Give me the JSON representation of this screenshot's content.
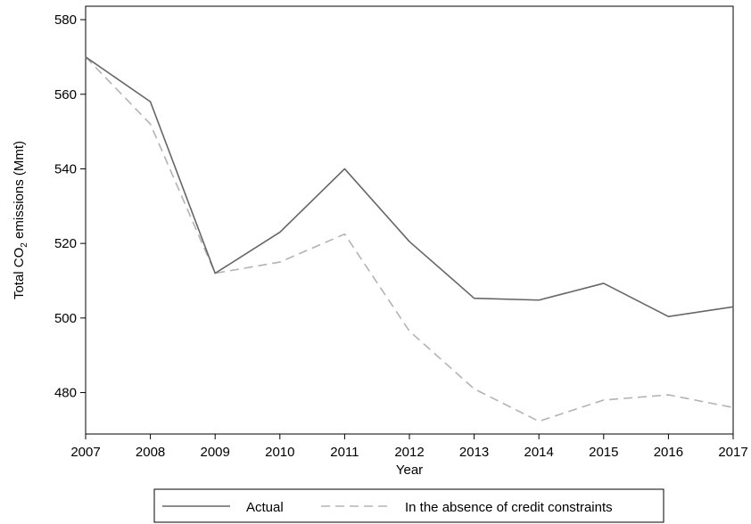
{
  "chart_data": {
    "type": "line",
    "x": [
      2007,
      2008,
      2009,
      2010,
      2011,
      2012,
      2013,
      2014,
      2015,
      2016,
      2017
    ],
    "series": [
      {
        "name": "Actual",
        "values": [
          570,
          558,
          512,
          523,
          540,
          520.5,
          505.3,
          504.8,
          509.3,
          500.4,
          503
        ],
        "color": "#666666",
        "dash": "solid"
      },
      {
        "name": "In the absence of credit constraints",
        "values": [
          570,
          552,
          512,
          515,
          522.5,
          496.5,
          481,
          472.3,
          478,
          479.4,
          476
        ],
        "color": "#b3b3b3",
        "dash": "dashed"
      }
    ],
    "xlabel": "Year",
    "ylabel_parts": [
      "Total CO",
      "2",
      " emissions (Mmt)"
    ],
    "xlim": [
      2007,
      2017
    ],
    "ylim": [
      468.9,
      583.6
    ],
    "yticks": [
      480,
      500,
      520,
      540,
      560,
      580
    ],
    "xticks": [
      2007,
      2008,
      2009,
      2010,
      2011,
      2012,
      2013,
      2014,
      2015,
      2016,
      2017
    ],
    "grid": false,
    "legend_position": "bottom"
  }
}
